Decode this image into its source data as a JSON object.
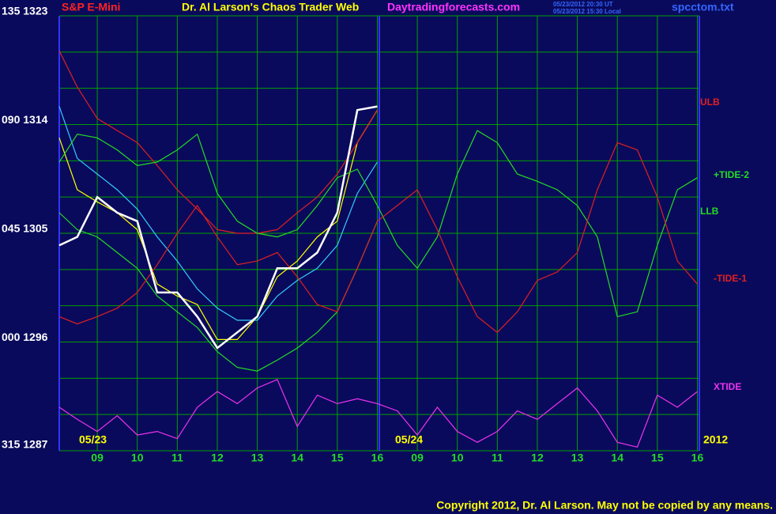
{
  "chart_data": {
    "type": "line",
    "title": "Dr. Al Larson's Chaos Trader Web",
    "site": "Daytradingforecasts.com",
    "timestamps": [
      "05/23/2012 20:30 UT",
      "05/23/2012 15:30 Local"
    ],
    "file": "spcctom.txt",
    "dates": [
      "05/23",
      "05/24"
    ],
    "year": "2012",
    "copyright": "Copyright 2012, Dr. Al Larson. May not be copied by any means.",
    "grid": true,
    "xlim": [
      0.05,
      16.05
    ],
    "xticks": [
      {
        "value": 1,
        "label": "09"
      },
      {
        "value": 2,
        "label": "10"
      },
      {
        "value": 3,
        "label": "11"
      },
      {
        "value": 4,
        "label": "12"
      },
      {
        "value": 5,
        "label": "13"
      },
      {
        "value": 6,
        "label": "14"
      },
      {
        "value": 7,
        "label": "15"
      },
      {
        "value": 8,
        "label": "16"
      },
      {
        "value": 9,
        "label": "09"
      },
      {
        "value": 10,
        "label": "10"
      },
      {
        "value": 11,
        "label": "11"
      },
      {
        "value": 12,
        "label": "12"
      },
      {
        "value": 13,
        "label": "13"
      },
      {
        "value": 14,
        "label": "14"
      },
      {
        "value": 15,
        "label": "15"
      },
      {
        "value": 16,
        "label": "16"
      }
    ],
    "ylim": [
      1287,
      1323
    ],
    "yticks": [
      {
        "value": 1323,
        "label": "135 1323"
      },
      {
        "value": 1314,
        "label": "090 1314"
      },
      {
        "value": 1305,
        "label": "045 1305"
      },
      {
        "value": 1296,
        "label": "000 1296"
      },
      {
        "value": 1287,
        "label": "315 1287"
      }
    ],
    "yminor": [
      1290,
      1293,
      1299,
      1302,
      1308,
      1311,
      1317,
      1320
    ],
    "x": [
      0.05,
      0.5,
      1,
      1.5,
      2,
      2.5,
      3,
      3.5,
      4,
      4.5,
      5,
      5.5,
      6,
      6.5,
      7,
      7.5,
      8,
      8.5,
      9,
      9.5,
      10,
      10.5,
      11,
      11.5,
      12,
      12.5,
      13,
      13.5,
      14,
      14.5,
      15,
      15.5,
      16
    ],
    "series": [
      {
        "color": "#ffff00",
        "values": [
          1312.9,
          1308.6,
          1307.6,
          1306.7,
          1305.3,
          1300.8,
          1299.8,
          1299.1,
          1296.2,
          1296.2,
          1298.1,
          1301.4,
          1302.7,
          1304.7,
          1306.0,
          1312.5,
          1315.2,
          null,
          null,
          null,
          null,
          null,
          null,
          null,
          null,
          null,
          null,
          null,
          null,
          null,
          null,
          null,
          null
        ]
      },
      {
        "color": "#33ccff",
        "values": [
          1315.5,
          1311.2,
          1309.9,
          1308.6,
          1307.0,
          1304.7,
          1302.7,
          1300.4,
          1298.8,
          1297.8,
          1297.8,
          1299.8,
          1301.1,
          1302.1,
          1304.0,
          1308.3,
          1310.9,
          null,
          null,
          null,
          null,
          null,
          null,
          null,
          null,
          null,
          null,
          null,
          null,
          null,
          null,
          null,
          null
        ]
      },
      {
        "name": "ULB",
        "color": "#e02020",
        "values": [
          1320.1,
          1317.1,
          1314.5,
          1313.5,
          1312.5,
          1310.6,
          1308.6,
          1307.0,
          1305.3,
          1305.0,
          1305.0,
          1305.3,
          1306.7,
          1308.0,
          1309.9,
          1312.5,
          1315.2,
          null,
          null,
          null,
          null,
          null,
          null,
          null,
          null,
          null,
          null,
          null,
          null,
          null,
          null,
          null,
          null
        ]
      },
      {
        "name": "+TIDE-2",
        "color": "#22dd22",
        "values": [
          1310.9,
          1313.2,
          1312.9,
          1311.9,
          1310.6,
          1310.9,
          1311.9,
          1313.2,
          1308.3,
          1306.0,
          1305.0,
          1304.7,
          1305.3,
          1307.3,
          1309.6,
          1310.3,
          1307.3,
          1304.0,
          1302.1,
          1304.7,
          1309.9,
          1313.5,
          1312.5,
          1309.9,
          1309.3,
          1308.6,
          1307.3,
          1304.7,
          1298.1,
          1298.5,
          1304.0,
          1308.6,
          1309.6
        ]
      },
      {
        "name": "LLB",
        "color": "#22dd22",
        "values": [
          1306.7,
          1305.3,
          1304.7,
          1303.4,
          1302.1,
          1299.8,
          1298.5,
          1297.2,
          1295.2,
          1293.9,
          1293.6,
          1294.5,
          1295.5,
          1296.8,
          1298.5,
          1302.1,
          1306.0,
          null,
          null,
          null,
          null,
          null,
          null,
          null,
          null,
          null,
          null,
          null,
          null,
          null,
          null,
          null,
          null
        ]
      },
      {
        "name": "-TIDE-1",
        "color": "#e02020",
        "values": [
          1298.1,
          1297.5,
          1298.1,
          1298.8,
          1300.1,
          1302.4,
          1305.0,
          1307.3,
          1304.7,
          1302.4,
          1302.7,
          1303.4,
          1301.4,
          1299.1,
          1298.5,
          1302.1,
          1306.0,
          1307.3,
          1308.6,
          1305.3,
          1301.4,
          1298.1,
          1296.8,
          1298.5,
          1301.1,
          1301.8,
          1303.4,
          1308.6,
          1312.5,
          1311.9,
          1308.0,
          1302.7,
          1300.8
        ]
      },
      {
        "name": "XTIDE",
        "color": "#ee33ee",
        "values": [
          1290.6,
          1289.6,
          1288.6,
          1289.9,
          1288.3,
          1288.6,
          1288.0,
          1290.6,
          1291.9,
          1290.9,
          1292.2,
          1292.9,
          1289.0,
          1291.6,
          1290.9,
          1291.3,
          1290.9,
          1290.3,
          1288.3,
          1290.6,
          1288.6,
          1287.7,
          1288.6,
          1290.3,
          1289.6,
          1290.9,
          1292.2,
          1290.3,
          1287.7,
          1287.3,
          1291.6,
          1290.6,
          1291.9
        ]
      },
      {
        "name": "S&P E-Mini",
        "color": "#ffffff",
        "values": [
          1304.0,
          1304.7,
          1308.0,
          1306.7,
          1306.0,
          1300.1,
          1300.1,
          1298.1,
          1295.5,
          1296.8,
          1298.1,
          1302.1,
          1302.1,
          1303.4,
          1306.7,
          1315.2,
          1315.5,
          null,
          null,
          null,
          null,
          null,
          null,
          null,
          null,
          null,
          null,
          null,
          null,
          null,
          null,
          null,
          null
        ]
      }
    ]
  }
}
